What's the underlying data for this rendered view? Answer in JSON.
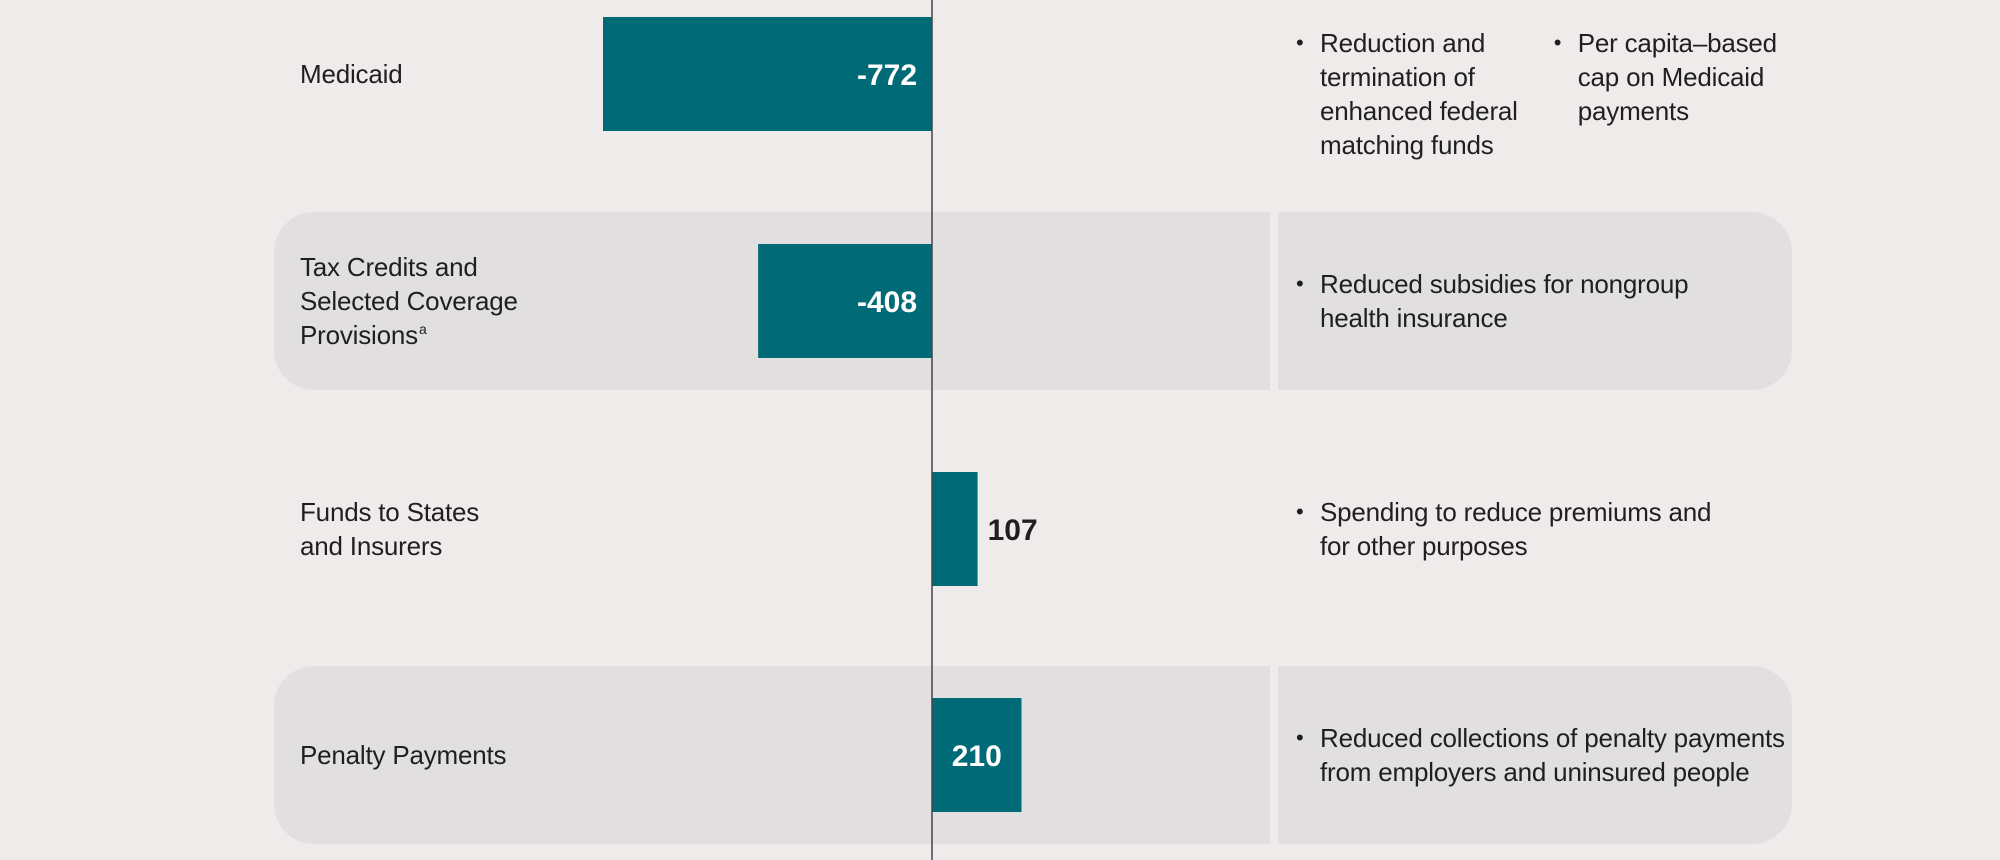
{
  "colors": {
    "background": "#efebeb",
    "band": "#e2dfe0",
    "bar": "#006b77",
    "axis": "#444444",
    "label_on_bar": "#ffffff",
    "label_off_bar": "#1f1f1f"
  },
  "chart_data": {
    "type": "bar",
    "orientation": "horizontal",
    "grid": false,
    "zero_line": true,
    "categories": [
      "Medicaid",
      "Tax Credits and Selected Coverage Provisions",
      "Funds to States and Insurers",
      "Penalty Payments"
    ],
    "values": [
      -772,
      -408,
      107,
      210
    ],
    "rows": [
      {
        "label_lines": [
          "Medicaid"
        ],
        "footnote": "",
        "value": -772,
        "value_label": "-772",
        "label_inside": true,
        "banded": false,
        "notes": [
          [
            "Reduction and",
            "termination of",
            "enhanced federal",
            "matching funds"
          ],
          [
            "Per capita–based",
            "cap on Medicaid",
            "payments"
          ]
        ]
      },
      {
        "label_lines": [
          "Tax Credits and",
          "Selected Coverage",
          "Provisions"
        ],
        "footnote": "a",
        "value": -408,
        "value_label": "-408",
        "label_inside": true,
        "banded": true,
        "notes": [
          [
            "Reduced subsidies for nongroup",
            "health insurance"
          ]
        ]
      },
      {
        "label_lines": [
          "Funds to States",
          "and Insurers"
        ],
        "footnote": "",
        "value": 107,
        "value_label": "107",
        "label_inside": false,
        "banded": false,
        "notes": [
          [
            "Spending to reduce premiums and",
            "for other purposes"
          ]
        ]
      },
      {
        "label_lines": [
          "Penalty Payments"
        ],
        "footnote": "",
        "value": 210,
        "value_label": "210",
        "label_inside": true,
        "banded": true,
        "notes": [
          [
            "Reduced collections of penalty payments",
            "from employers and uninsured people"
          ]
        ]
      }
    ]
  }
}
